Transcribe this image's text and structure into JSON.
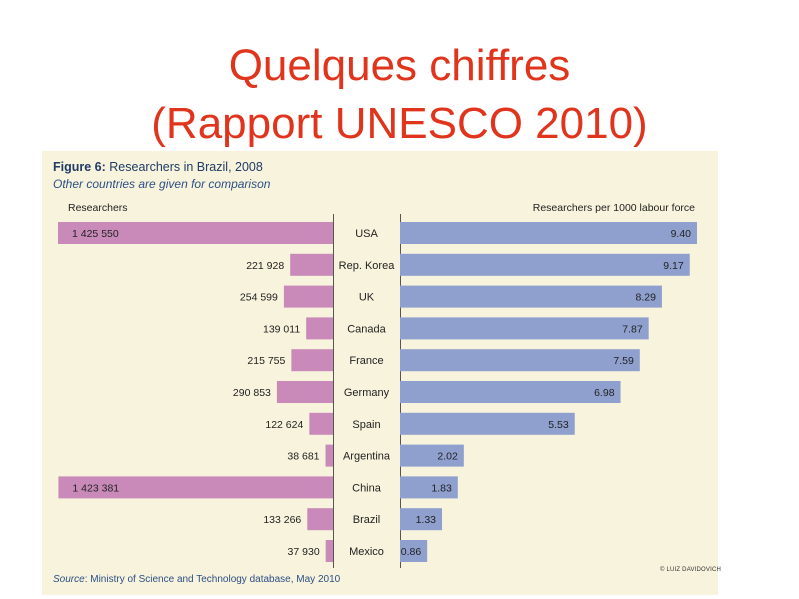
{
  "slide": {
    "title_line_1": "Quelques chiffres",
    "title_line_2": "(Rapport UNESCO 2010)",
    "copyright": "© LUIZ DAVIDOVICH"
  },
  "figure": {
    "caption_label": "Figure 6:",
    "caption_text": " Researchers in Brazil, 2008",
    "subcaption": "Other countries are given for comparison",
    "source_label": "Source",
    "source_text": ": Ministry of Science and Technology database, May 2010"
  },
  "colors": {
    "left_bars": "#c98ab9",
    "right_bars": "#8fa0cf",
    "panel": "#f7f3dc",
    "title": "#e0341c"
  },
  "chart_data": {
    "type": "bar",
    "orientation": "horizontal-butterfly",
    "categories": [
      "USA",
      "Rep. Korea",
      "UK",
      "Canada",
      "France",
      "Germany",
      "Spain",
      "Argentina",
      "China",
      "Brazil",
      "Mexico"
    ],
    "series": [
      {
        "name": "Researchers",
        "values": [
          1425550,
          221928,
          254599,
          139011,
          215755,
          290853,
          122624,
          38681,
          1423381,
          133266,
          37930
        ],
        "labels": [
          "1 425 550",
          "221 928",
          "254 599",
          "139 011",
          "215 755",
          "290 853",
          "122 624",
          "38 681",
          "1 423 381",
          "133 266",
          "37 930"
        ]
      },
      {
        "name": "Researchers per 1000 labour force",
        "values": [
          9.4,
          9.17,
          8.29,
          7.87,
          7.59,
          6.98,
          5.53,
          2.02,
          1.83,
          1.33,
          0.86
        ],
        "labels": [
          "9.40",
          "9.17",
          "8.29",
          "7.87",
          "7.59",
          "6.98",
          "5.53",
          "2.02",
          "1.83",
          "1.33",
          "0.86"
        ]
      }
    ],
    "left_max": 1425550,
    "right_max": 9.4,
    "grid": false
  }
}
